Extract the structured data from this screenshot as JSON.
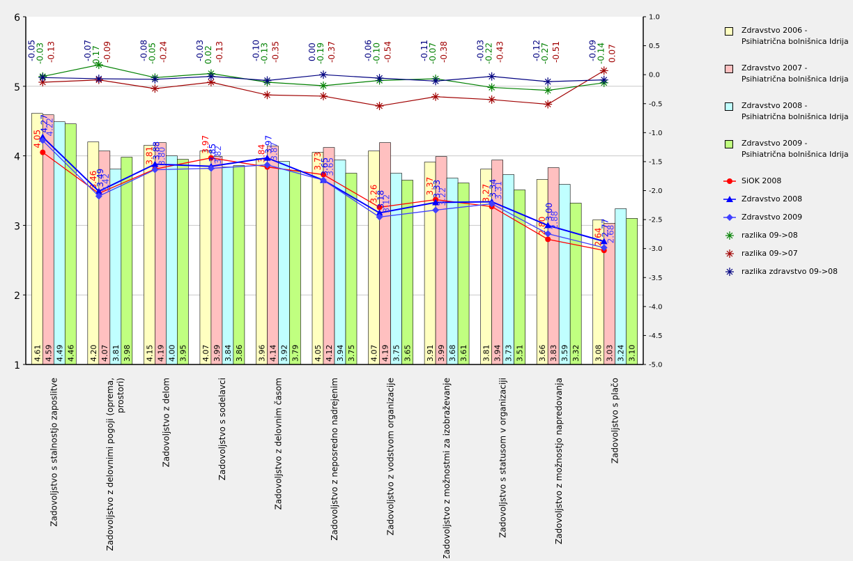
{
  "chart_data": {
    "type": "bar",
    "title": "",
    "xlabel": "",
    "ylabel": "",
    "ylim": [
      1,
      6
    ],
    "yticks": [
      "1",
      "2",
      "3",
      "4",
      "5",
      "6"
    ],
    "y2lim": [
      -5,
      1
    ],
    "y2ticks": [
      "-5.0",
      "-4.5",
      "-4.0",
      "-3.5",
      "-3.0",
      "-2.5",
      "-2.0",
      "-1.5",
      "-1.0",
      "-0.5",
      "0.0",
      "0.5",
      "1.0"
    ],
    "grid": true,
    "legend_position": "right",
    "categories": [
      "Zadovoljstvo s stalnostjo zaposlitve",
      "Zadovoljstvo z delovnimi pogoji (oprema, prostori)",
      "Zadovoljstvo z delom",
      "Zadovoljstvo s sodelavci",
      "Zadovoljstvo z delovnim časom",
      "Zadovoljstvo z neposredno nadrejenim",
      "Zadovoljstvo z vodstvom organizacije",
      "Zadovoljstvo z možnostmi za izobraževanje",
      "Zadovoljstvo s statusom v organizaciji",
      "Zadovoljstvo z možnostjo napredovanja",
      "Zadovoljstvo s plačo"
    ],
    "bar_series": [
      {
        "name": "Zdravstvo 2006 - Psihiatrična bolnišnica Idrija",
        "color": "#ffffc0",
        "values": [
          4.61,
          4.2,
          4.15,
          4.07,
          3.96,
          4.05,
          4.07,
          3.91,
          3.81,
          3.66,
          3.08
        ],
        "labels": [
          "4.61",
          "4.20",
          "4.15",
          "4.07",
          "3.96",
          "4.05",
          "4.07",
          "3.91",
          "3.81",
          "3.66",
          "3.08"
        ]
      },
      {
        "name": "Zdravstvo 2007 - Psihiatrična bolnišnica Idrija",
        "color": "#ffc0c0",
        "values": [
          4.59,
          4.07,
          4.19,
          3.99,
          4.14,
          4.12,
          4.19,
          3.99,
          3.94,
          3.83,
          3.03
        ],
        "labels": [
          "4.59",
          "4.07",
          "4.19",
          "3.99",
          "4.14",
          "4.12",
          "4.19",
          "3.99",
          "3.94",
          "3.83",
          "3.03"
        ]
      },
      {
        "name": "Zdravstvo 2008 - Psihiatrična bolnišnica Idrija",
        "color": "#c0ffff",
        "values": [
          4.49,
          3.81,
          4.0,
          3.84,
          3.92,
          3.94,
          3.75,
          3.68,
          3.73,
          3.59,
          3.24
        ],
        "labels": [
          "4.49",
          "3.81",
          "4.00",
          "3.84",
          "3.92",
          "3.94",
          "3.75",
          "3.68",
          "3.73",
          "3.59",
          "3.24"
        ]
      },
      {
        "name": "Zdravstvo 2009 - Psihiatrična bolnišnica Idrija",
        "color": "#c0ff80",
        "values": [
          4.46,
          3.98,
          3.95,
          3.86,
          3.79,
          3.75,
          3.65,
          3.61,
          3.51,
          3.32,
          3.1
        ],
        "labels": [
          "4.46",
          "3.98",
          "3.95",
          "3.86",
          "3.79",
          "3.75",
          "3.65",
          "3.61",
          "3.51",
          "3.32",
          "3.10"
        ]
      }
    ],
    "line_series": [
      {
        "name": "SiOK 2008",
        "color": "#ff0000",
        "marker": "circle",
        "show_labels": true,
        "values": [
          4.05,
          3.46,
          3.81,
          3.97,
          3.84,
          3.73,
          3.26,
          3.37,
          3.27,
          2.8,
          2.64
        ],
        "labels": [
          "4.05",
          "3.46",
          "3.81",
          "3.97",
          "3.84",
          "3.73",
          "3.26",
          "3.37",
          "3.27",
          "2.80",
          "2.64"
        ]
      },
      {
        "name": "Zdravstvo 2008",
        "color": "#0000ff",
        "marker": "triangle",
        "show_labels": true,
        "values": [
          4.27,
          3.49,
          3.88,
          3.85,
          3.97,
          3.65,
          3.18,
          3.33,
          3.34,
          3.0,
          2.77
        ],
        "labels": [
          "4.27",
          "3.49",
          "3.88",
          "3.85",
          "3.97",
          "3.65",
          "3.18",
          "3.33",
          "3.34",
          "3.00",
          "2.77"
        ]
      },
      {
        "name": "Zdravstvo 2009",
        "color": "#4040ff",
        "marker": "diamond",
        "show_labels": true,
        "values": [
          4.22,
          3.42,
          3.8,
          3.82,
          3.87,
          3.65,
          3.12,
          3.22,
          3.31,
          2.88,
          2.68
        ],
        "labels": [
          "4.22",
          "3.42",
          "3.80",
          "3.82",
          "3.87",
          "3.65",
          "3.12",
          "3.22",
          "3.31",
          "2.88",
          "2.68"
        ]
      }
    ],
    "diff_series": [
      {
        "name": "razlika 09->08",
        "color": "#008000",
        "marker": "star",
        "values": [
          -0.03,
          0.17,
          -0.05,
          0.02,
          -0.13,
          -0.19,
          -0.1,
          -0.07,
          -0.22,
          -0.27,
          -0.14
        ],
        "labels": [
          "-0.03",
          "0.17",
          "-0.05",
          "0.02",
          "-0.13",
          "-0.19",
          "-0.10",
          "-0.07",
          "-0.22",
          "-0.27",
          "-0.14"
        ]
      },
      {
        "name": "razlika 09->07",
        "color": "#a00000",
        "marker": "star",
        "values": [
          -0.13,
          -0.09,
          -0.24,
          -0.13,
          -0.35,
          -0.37,
          -0.54,
          -0.38,
          -0.43,
          -0.51,
          0.07
        ],
        "labels": [
          "-0.13",
          "-0.09",
          "-0.24",
          "-0.13",
          "-0.35",
          "-0.37",
          "-0.54",
          "-0.38",
          "-0.43",
          "-0.51",
          "0.07"
        ]
      },
      {
        "name": "razlika zdravstvo 09->08",
        "color": "#000080",
        "marker": "star",
        "values": [
          -0.05,
          -0.07,
          -0.08,
          -0.03,
          -0.1,
          0.0,
          -0.06,
          -0.11,
          -0.03,
          -0.12,
          -0.09
        ],
        "labels": [
          "-0.05",
          "-0.07",
          "-0.08",
          "-0.03",
          "-0.10",
          "0.00",
          "-0.06",
          "-0.11",
          "-0.03",
          "-0.12",
          "-0.09"
        ]
      }
    ]
  }
}
